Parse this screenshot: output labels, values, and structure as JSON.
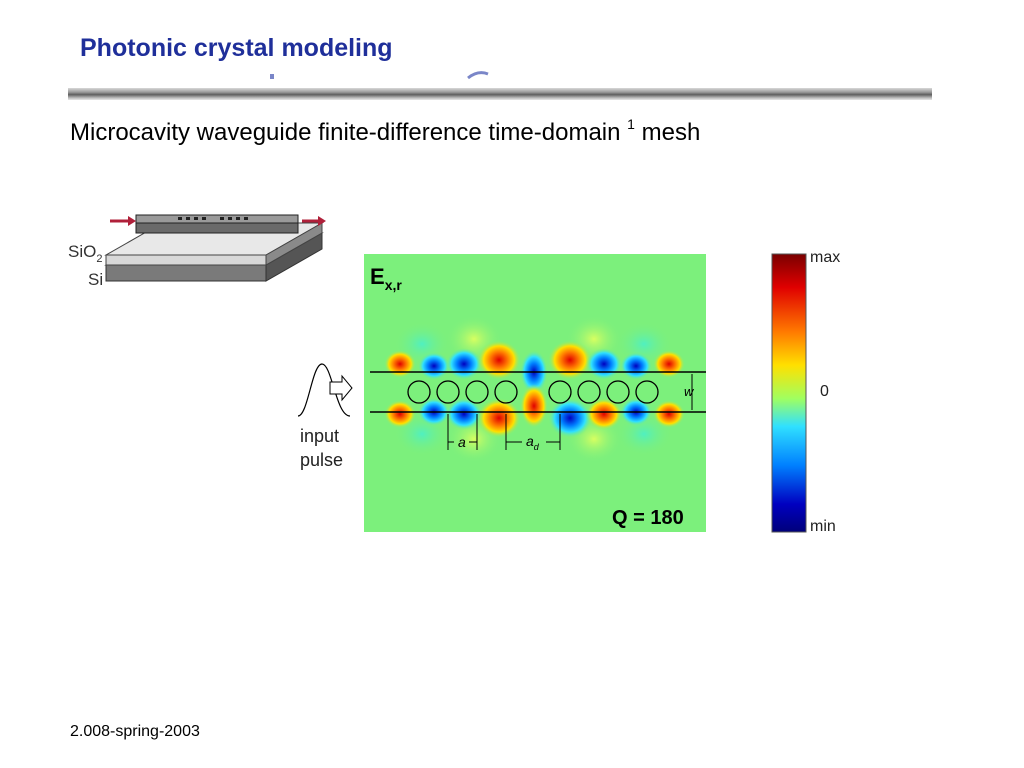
{
  "slide": {
    "title": "Photonic crystal modeling",
    "subtitle_main": "Microcavity waveguide finite-difference time-domain",
    "subtitle_sup": "1",
    "subtitle_tail": "mesh",
    "footer": "2.008-spring-2003"
  },
  "device_sketch": {
    "layer_top_label": "SiO",
    "layer_top_sub": "2",
    "layer_bottom_label": "Si"
  },
  "field_plot": {
    "label_main": "E",
    "label_sub": "x,r",
    "q_label": "Q = 180",
    "width_label": "w",
    "period_label": "a",
    "defect_label": "a",
    "defect_sub": "d"
  },
  "input": {
    "line1": "input",
    "line2": "pulse"
  },
  "colorbar": {
    "max_label": "max",
    "zero_label": "0",
    "min_label": "min",
    "colors": [
      "#7a0000",
      "#e00000",
      "#ff7a00",
      "#ffe000",
      "#a0ff60",
      "#30e0ff",
      "#0080ff",
      "#0000c0",
      "#00007a"
    ]
  },
  "colors": {
    "title": "#1f2f9a",
    "field_background": "#7cf07c",
    "arrow": "#b0203a"
  }
}
